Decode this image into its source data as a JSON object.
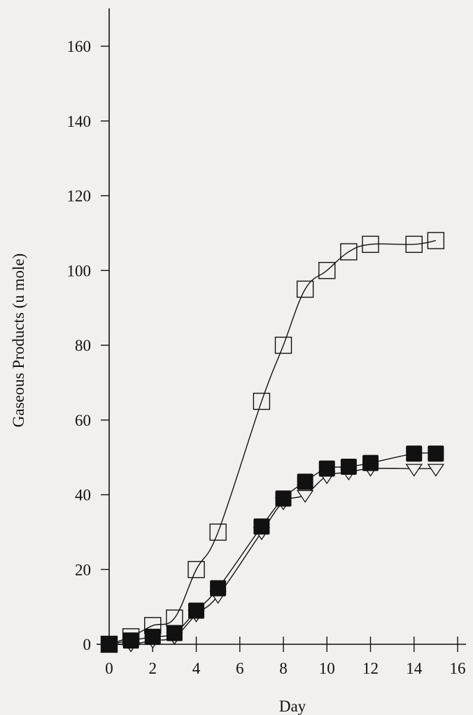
{
  "chart_data": {
    "type": "line",
    "title": "",
    "xlabel": "Day",
    "ylabel": "Gaseous Products (u mole)",
    "xlim": [
      0,
      16
    ],
    "ylim": [
      0,
      170
    ],
    "xticks": [
      0,
      2,
      4,
      6,
      8,
      10,
      12,
      14,
      16
    ],
    "yticks": [
      0,
      20,
      40,
      60,
      80,
      100,
      120,
      140,
      160
    ],
    "grid": false,
    "legend": "none",
    "series": [
      {
        "marker": "open-square",
        "color": "#111111",
        "x": [
          0,
          1,
          2,
          3,
          4,
          5,
          7,
          8,
          9,
          10,
          11,
          12,
          14,
          15
        ],
        "y": [
          0,
          2,
          5,
          7,
          20,
          30,
          65,
          80,
          95,
          100,
          105,
          107,
          107,
          108
        ]
      },
      {
        "marker": "filled-square",
        "color": "#111111",
        "x": [
          0,
          1,
          2,
          3,
          4,
          5,
          7,
          8,
          9,
          10,
          11,
          12,
          14,
          15
        ],
        "y": [
          0,
          1,
          2,
          3,
          9,
          15,
          31.5,
          39,
          43.5,
          47,
          47.5,
          48.5,
          51,
          51
        ]
      },
      {
        "marker": "open-triangle-down",
        "color": "#111111",
        "x": [
          0,
          1,
          2,
          3,
          4,
          5,
          7,
          8,
          9,
          10,
          11,
          12,
          14,
          15
        ],
        "y": [
          0,
          0,
          1,
          2,
          8,
          13,
          30,
          38,
          40,
          45,
          46,
          47,
          47,
          47
        ]
      }
    ]
  }
}
